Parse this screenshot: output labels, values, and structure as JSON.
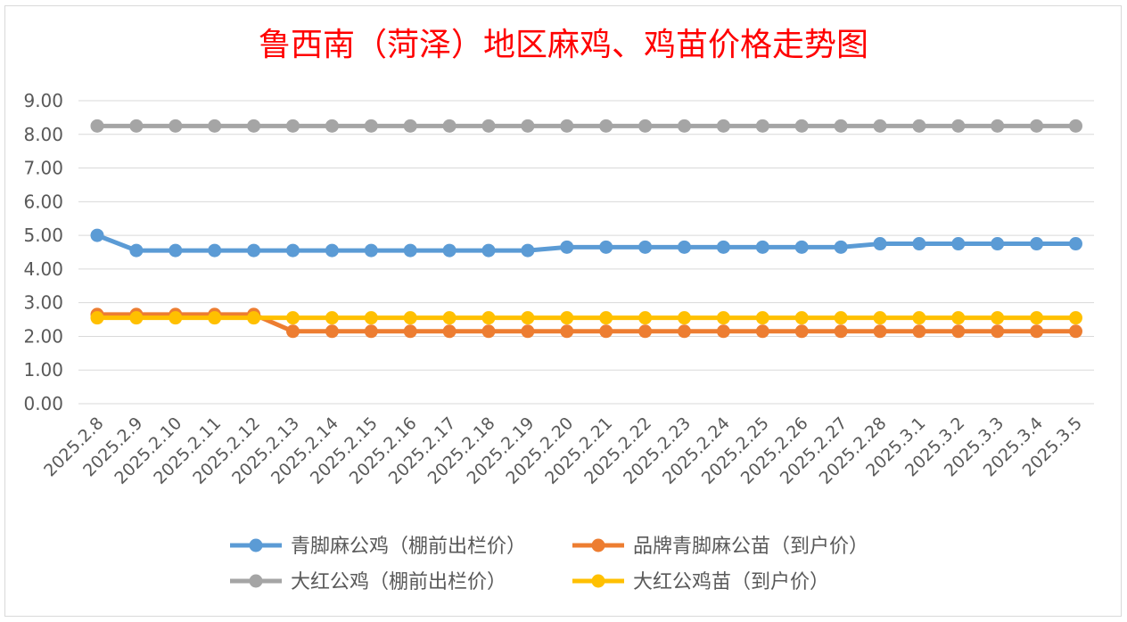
{
  "chart_data": {
    "type": "line",
    "title": "鲁西南（菏泽）地区麻鸡、鸡苗价格走势图",
    "xlabel": "",
    "ylabel": "",
    "ylim": [
      0,
      9
    ],
    "yticks": [
      "0.00",
      "1.00",
      "2.00",
      "3.00",
      "4.00",
      "5.00",
      "6.00",
      "7.00",
      "8.00",
      "9.00"
    ],
    "grid": true,
    "legend_position": "bottom",
    "categories": [
      "2025.2.8",
      "2025.2.9",
      "2025.2.10",
      "2025.2.11",
      "2025.2.12",
      "2025.2.13",
      "2025.2.14",
      "2025.2.15",
      "2025.2.16",
      "2025.2.17",
      "2025.2.18",
      "2025.2.19",
      "2025.2.20",
      "2025.2.21",
      "2025.2.22",
      "2025.2.23",
      "2025.2.24",
      "2025.2.25",
      "2025.2.26",
      "2025.2.27",
      "2025.2.28",
      "2025.3.1",
      "2025.3.2",
      "2025.3.3",
      "2025.3.4",
      "2025.3.5"
    ],
    "series": [
      {
        "name": "青脚麻公鸡（棚前出栏价）",
        "color": "#5b9bd5",
        "values": [
          5.0,
          4.55,
          4.55,
          4.55,
          4.55,
          4.55,
          4.55,
          4.55,
          4.55,
          4.55,
          4.55,
          4.55,
          4.65,
          4.65,
          4.65,
          4.65,
          4.65,
          4.65,
          4.65,
          4.65,
          4.75,
          4.75,
          4.75,
          4.75,
          4.75,
          4.75
        ]
      },
      {
        "name": "品牌青脚麻公苗（到户价）",
        "color": "#ed7d31",
        "values": [
          2.65,
          2.65,
          2.65,
          2.65,
          2.65,
          2.15,
          2.15,
          2.15,
          2.15,
          2.15,
          2.15,
          2.15,
          2.15,
          2.15,
          2.15,
          2.15,
          2.15,
          2.15,
          2.15,
          2.15,
          2.15,
          2.15,
          2.15,
          2.15,
          2.15,
          2.15
        ]
      },
      {
        "name": "大红公鸡（棚前出栏价）",
        "color": "#a5a5a5",
        "values": [
          8.25,
          8.25,
          8.25,
          8.25,
          8.25,
          8.25,
          8.25,
          8.25,
          8.25,
          8.25,
          8.25,
          8.25,
          8.25,
          8.25,
          8.25,
          8.25,
          8.25,
          8.25,
          8.25,
          8.25,
          8.25,
          8.25,
          8.25,
          8.25,
          8.25,
          8.25
        ]
      },
      {
        "name": "大红公鸡苗（到户价）",
        "color": "#ffc000",
        "values": [
          2.55,
          2.55,
          2.55,
          2.55,
          2.55,
          2.55,
          2.55,
          2.55,
          2.55,
          2.55,
          2.55,
          2.55,
          2.55,
          2.55,
          2.55,
          2.55,
          2.55,
          2.55,
          2.55,
          2.55,
          2.55,
          2.55,
          2.55,
          2.55,
          2.55,
          2.55
        ]
      }
    ]
  }
}
